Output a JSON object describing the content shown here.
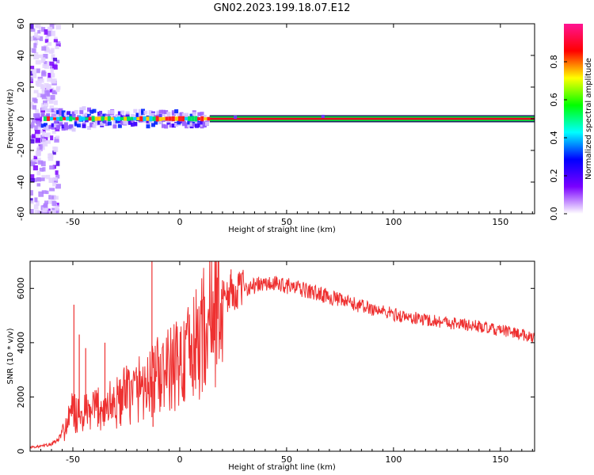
{
  "page": {
    "title": "GN02.2023.199.18.07.E12"
  },
  "chart_data": [
    {
      "type": "heatmap",
      "xlabel": "Height of straight line (km)",
      "ylabel": "Frequency (Hz)",
      "xlim": [
        -70,
        166
      ],
      "ylim": [
        -60,
        60
      ],
      "xticks": [
        -50,
        0,
        50,
        100,
        150
      ],
      "yticks": [
        -60,
        -40,
        -20,
        0,
        20,
        40,
        60
      ],
      "colorbar": {
        "label": "Normalized spectral amplitude",
        "range": [
          0,
          1
        ],
        "ticks": [
          0.0,
          0.2,
          0.4,
          0.6,
          0.8
        ],
        "colors": [
          "#ffffff",
          "#7a00ff",
          "#0000ff",
          "#00ffff",
          "#00ff00",
          "#ffff00",
          "#ff0000",
          "#ff1493"
        ]
      },
      "ridge": {
        "frequency": 0,
        "x_range": [
          -65,
          166
        ],
        "dominant_color": "#e8001e"
      },
      "low_altitude_noise": {
        "x_range": [
          -70,
          -57
        ],
        "frequency_range": [
          -60,
          60
        ]
      }
    },
    {
      "type": "line",
      "xlabel": "Height of straight line (km)",
      "ylabel": "SNR (10 * v/v)",
      "xlim": [
        -70,
        166
      ],
      "ylim": [
        0,
        7000
      ],
      "xticks": [
        -50,
        0,
        50,
        100,
        150
      ],
      "yticks": [
        0,
        2000,
        4000,
        6000
      ],
      "color": "#ee3030",
      "x": [
        -70,
        -65,
        -60,
        -57,
        -54,
        -52,
        -50,
        -48,
        -46,
        -44,
        -42,
        -40,
        -38,
        -36,
        -34,
        -32,
        -30,
        -28,
        -26,
        -24,
        -22,
        -20,
        -18,
        -16,
        -14,
        -12,
        -10,
        -8,
        -6,
        -4,
        -2,
        0,
        2,
        4,
        6,
        8,
        10,
        12,
        14,
        16,
        18,
        20,
        22,
        24,
        26,
        28,
        30,
        32,
        35,
        38,
        40,
        42,
        45,
        48,
        50,
        55,
        60,
        65,
        70,
        75,
        80,
        85,
        90,
        95,
        100,
        105,
        110,
        115,
        120,
        125,
        130,
        135,
        140,
        145,
        150,
        155,
        160,
        166
      ],
      "y": [
        150,
        180,
        260,
        400,
        800,
        1100,
        1500,
        1300,
        1200,
        1400,
        1350,
        1450,
        1700,
        1500,
        1600,
        1800,
        1700,
        1900,
        2000,
        2100,
        2200,
        2300,
        2450,
        2350,
        2500,
        2600,
        2800,
        2750,
        2900,
        3000,
        3150,
        3300,
        3350,
        3500,
        3700,
        3900,
        4300,
        4600,
        4850,
        5100,
        5400,
        5600,
        5750,
        5850,
        5900,
        5950,
        6000,
        6050,
        6100,
        6150,
        6150,
        6150,
        6150,
        6150,
        6100,
        6000,
        5900,
        5800,
        5700,
        5550,
        5450,
        5350,
        5250,
        5150,
        5050,
        4950,
        4900,
        4850,
        4800,
        4750,
        4700,
        4650,
        4600,
        4500,
        4450,
        4400,
        4300,
        4200
      ],
      "spikes": [
        {
          "x": -49.5,
          "y": 5400
        },
        {
          "x": -47,
          "y": 4300
        },
        {
          "x": -44,
          "y": 3800
        },
        {
          "x": -35,
          "y": 4000
        },
        {
          "x": -13,
          "y": 7000
        },
        {
          "x": -12.5,
          "y": 900
        },
        {
          "x": 24,
          "y": 6700
        },
        {
          "x": 20,
          "y": 6300
        }
      ]
    }
  ]
}
